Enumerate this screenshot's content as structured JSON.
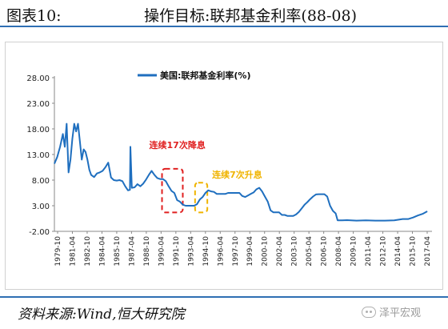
{
  "header": {
    "fig_no": "图表10:",
    "title": "操作目标:联邦基金利率(88-08)"
  },
  "footer": {
    "source": "资料来源:Wind,恒大研究院",
    "watermark": "泽平宏观"
  },
  "colors": {
    "line": "#1f6fbf",
    "red_box": "#e02020",
    "yellow_box": "#f0b400",
    "red_text": "#e02020",
    "yellow_text": "#f0b400",
    "rule": "#2f6fb3"
  },
  "chart_data": {
    "type": "line",
    "title": "",
    "xlabel": "",
    "ylabel": "",
    "ylim": [
      -2,
      28
    ],
    "yticks": [
      "28.00",
      "23.00",
      "18.00",
      "13.00",
      "8.00",
      "3.00",
      "-2.00"
    ],
    "ytick_values": [
      28,
      23,
      18,
      13,
      8,
      3,
      -2
    ],
    "xticks": [
      "1979-10",
      "1981-04",
      "1982-10",
      "1984-04",
      "1985-10",
      "1987-04",
      "1988-10",
      "1990-04",
      "1991-10",
      "1993-04",
      "1994-10",
      "1996-04",
      "1997-10",
      "1999-04",
      "2000-10",
      "2002-04",
      "2003-10",
      "2005-04",
      "2006-10",
      "2008-04",
      "2009-10",
      "2011-04",
      "2012-10",
      "2014-04",
      "2015-10",
      "2017-04"
    ],
    "xlim": [
      1979.0,
      2019.0
    ],
    "legend": {
      "label": "美国:联邦基金利率(%)",
      "placement": "top-center"
    },
    "series": [
      {
        "name": "美国:联邦基金利率(%)",
        "x": [
          1979.0,
          1979.3,
          1979.6,
          1979.9,
          1980.1,
          1980.3,
          1980.5,
          1980.7,
          1980.9,
          1981.1,
          1981.3,
          1981.5,
          1981.7,
          1981.9,
          1982.1,
          1982.3,
          1982.5,
          1982.7,
          1982.9,
          1983.2,
          1983.5,
          1983.8,
          1984.1,
          1984.4,
          1984.7,
          1985.0,
          1985.3,
          1985.6,
          1985.9,
          1986.2,
          1986.5,
          1986.8,
          1987.0,
          1987.05,
          1987.2,
          1987.5,
          1987.8,
          1988.1,
          1988.4,
          1988.7,
          1989.0,
          1989.3,
          1989.6,
          1989.9,
          1990.2,
          1990.5,
          1990.8,
          1991.1,
          1991.4,
          1991.7,
          1992.0,
          1992.3,
          1992.6,
          1992.9,
          1993.2,
          1993.5,
          1993.8,
          1994.1,
          1994.4,
          1994.7,
          1995.0,
          1995.3,
          1995.6,
          1995.9,
          1996.2,
          1996.5,
          1996.8,
          1997.1,
          1997.4,
          1997.7,
          1998.0,
          1998.3,
          1998.6,
          1998.9,
          1999.2,
          1999.5,
          1999.8,
          2000.1,
          2000.4,
          2000.7,
          2001.0,
          2001.3,
          2001.6,
          2001.9,
          2002.2,
          2002.5,
          2002.8,
          2003.1,
          2003.4,
          2003.7,
          2004.0,
          2004.3,
          2004.6,
          2004.9,
          2005.2,
          2005.5,
          2005.8,
          2006.1,
          2006.4,
          2006.7,
          2007.0,
          2007.3,
          2007.6,
          2007.9,
          2008.2,
          2008.5,
          2008.8,
          2009.0,
          2009.5,
          2010.0,
          2011.0,
          2012.0,
          2013.0,
          2014.0,
          2015.0,
          2015.9,
          2016.5,
          2017.0,
          2017.5,
          2018.0,
          2018.5
        ],
        "values": [
          11.2,
          12.5,
          14.5,
          17.0,
          14.5,
          19.0,
          9.5,
          12.0,
          16.0,
          19.0,
          17.5,
          19.0,
          15.5,
          12.0,
          14.0,
          13.5,
          12.0,
          10.0,
          9.0,
          8.6,
          9.3,
          9.5,
          9.8,
          10.5,
          11.4,
          8.5,
          8.0,
          7.9,
          8.0,
          7.8,
          6.8,
          6.0,
          6.1,
          14.5,
          6.5,
          6.6,
          7.2,
          6.8,
          7.3,
          8.1,
          9.0,
          9.8,
          9.0,
          8.4,
          8.2,
          8.2,
          7.8,
          6.8,
          5.9,
          5.5,
          4.1,
          3.8,
          3.2,
          3.0,
          3.0,
          3.0,
          3.0,
          3.3,
          4.2,
          4.7,
          5.5,
          6.0,
          5.8,
          5.7,
          5.3,
          5.3,
          5.3,
          5.3,
          5.5,
          5.5,
          5.5,
          5.5,
          5.5,
          4.9,
          4.7,
          5.0,
          5.3,
          5.6,
          6.2,
          6.5,
          5.8,
          4.8,
          3.8,
          2.1,
          1.7,
          1.7,
          1.7,
          1.2,
          1.2,
          1.0,
          1.0,
          1.0,
          1.3,
          1.8,
          2.5,
          3.2,
          3.7,
          4.3,
          4.8,
          5.2,
          5.25,
          5.25,
          5.25,
          4.8,
          3.0,
          2.0,
          1.5,
          0.15,
          0.15,
          0.18,
          0.1,
          0.15,
          0.1,
          0.1,
          0.15,
          0.4,
          0.4,
          0.7,
          1.1,
          1.4,
          1.9
        ]
      }
    ],
    "annotations": [
      {
        "text": "连续17次降息",
        "color": "red",
        "box_x": [
          1990.4,
          1992.6
        ],
        "box_y": [
          1.7,
          10.2
        ]
      },
      {
        "text": "连续7次升息",
        "color": "yellow",
        "box_x": [
          1993.9,
          1995.2
        ],
        "box_y": [
          1.7,
          7.5
        ]
      }
    ]
  }
}
